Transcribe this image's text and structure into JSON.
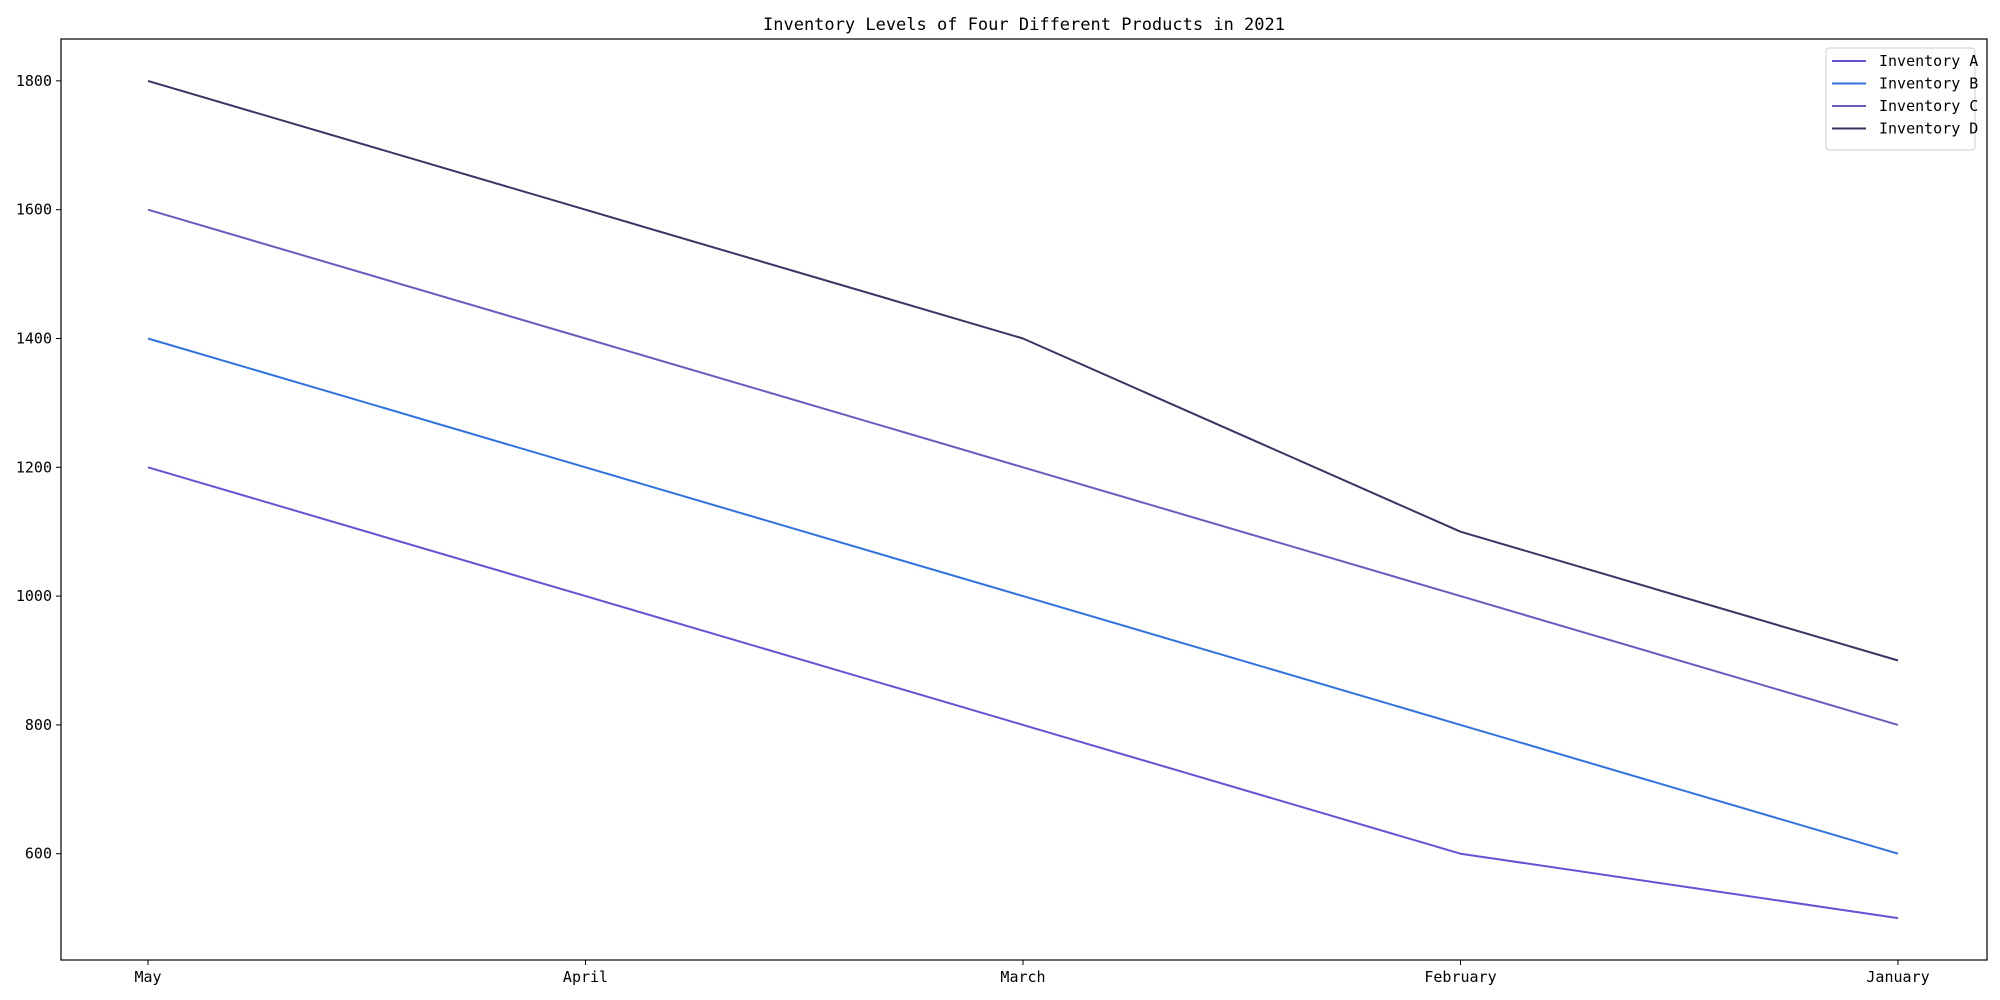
{
  "chart_data": {
    "type": "line",
    "title": "Inventory Levels of Four Different Products in 2021",
    "xlabel": "",
    "ylabel": "",
    "categories": [
      "May",
      "April",
      "March",
      "February",
      "January"
    ],
    "series": [
      {
        "name": "Inventory A",
        "color": "#6a50d6",
        "values": [
          1200,
          1000,
          800,
          600,
          500
        ]
      },
      {
        "name": "Inventory B",
        "color": "#2f73e0",
        "values": [
          1400,
          1200,
          1000,
          800,
          600
        ]
      },
      {
        "name": "Inventory C",
        "color": "#6b5bbf",
        "values": [
          1600,
          1400,
          1200,
          1000,
          800
        ]
      },
      {
        "name": "Inventory D",
        "color": "#3a3565",
        "values": [
          1800,
          1600,
          1400,
          1100,
          900
        ]
      }
    ],
    "ylim": [
      435,
      1865
    ],
    "yticks": [
      600,
      800,
      1000,
      1200,
      1400,
      1600,
      1800
    ],
    "grid": false,
    "legend_position": "top-right"
  }
}
